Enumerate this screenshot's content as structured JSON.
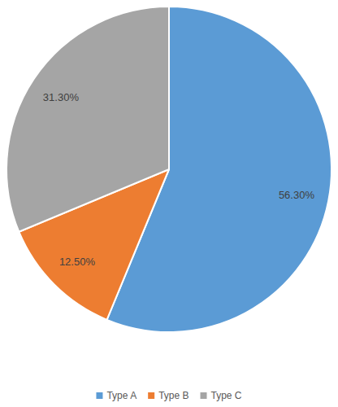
{
  "chart_data": {
    "type": "pie",
    "categories": [
      "Type A",
      "Type B",
      "Type C"
    ],
    "values": [
      56.3,
      12.5,
      31.3
    ],
    "value_labels": [
      "56.30%",
      "12.50%",
      "31.30%"
    ],
    "colors": [
      "#5b9bd5",
      "#ed7d31",
      "#a5a5a5"
    ],
    "data_labels": true,
    "legend": "bottom"
  }
}
